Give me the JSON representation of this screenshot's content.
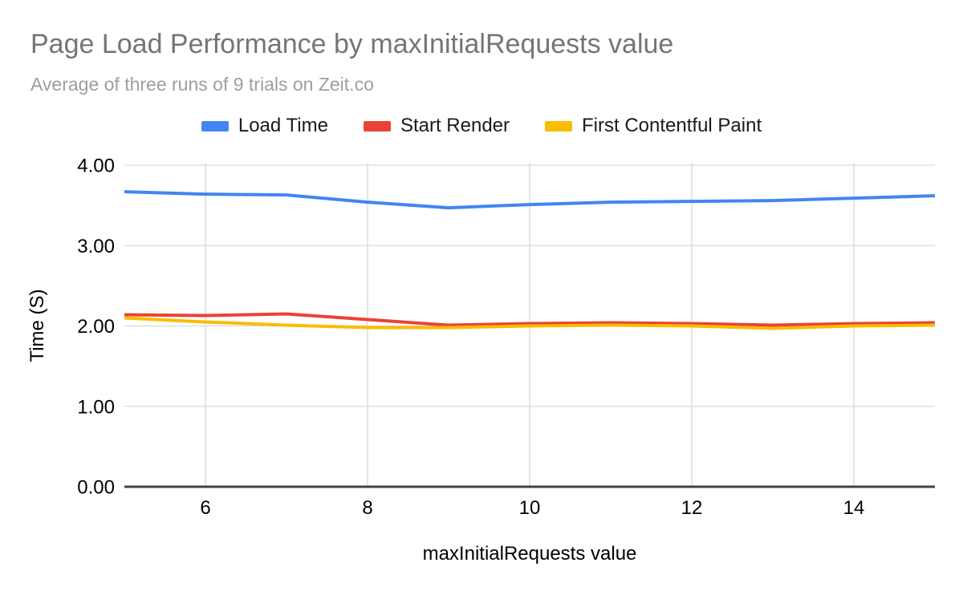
{
  "chart": {
    "title": "Page Load Performance by maxInitialRequests value",
    "subtitle": "Average of three runs of 9 trials on Zeit.co"
  },
  "chart_data": {
    "type": "line",
    "title": "Page Load Performance by maxInitialRequests value",
    "subtitle": "Average of three runs of 9 trials on Zeit.co",
    "xlabel": "maxInitialRequests value",
    "ylabel": "Time (S)",
    "xlim": [
      5,
      15
    ],
    "ylim": [
      0,
      4
    ],
    "grid": true,
    "legend_position": "top",
    "x": [
      5,
      6,
      7,
      8,
      9,
      10,
      11,
      12,
      13,
      14,
      15
    ],
    "x_ticks": [
      6,
      8,
      10,
      12,
      14
    ],
    "x_tick_labels": [
      "6",
      "8",
      "10",
      "12",
      "14"
    ],
    "y_ticks": [
      0,
      1,
      2,
      3,
      4
    ],
    "y_tick_labels": [
      "0.00",
      "1.00",
      "2.00",
      "3.00",
      "4.00"
    ],
    "series": [
      {
        "name": "Load Time",
        "color": "#4285f4",
        "values": [
          3.67,
          3.64,
          3.63,
          3.54,
          3.47,
          3.51,
          3.54,
          3.55,
          3.56,
          3.59,
          3.62
        ]
      },
      {
        "name": "Start Render",
        "color": "#ea4335",
        "values": [
          2.14,
          2.13,
          2.15,
          2.08,
          2.01,
          2.03,
          2.04,
          2.03,
          2.01,
          2.03,
          2.04
        ]
      },
      {
        "name": "First Contentful Paint",
        "color": "#fbbc04",
        "values": [
          2.1,
          2.05,
          2.01,
          1.98,
          1.98,
          2.0,
          2.01,
          2.0,
          1.97,
          2.0,
          2.01
        ]
      }
    ],
    "colors": {
      "grid": "#d9d9d9",
      "axis": "#424242",
      "tick_text": "#000000"
    }
  }
}
